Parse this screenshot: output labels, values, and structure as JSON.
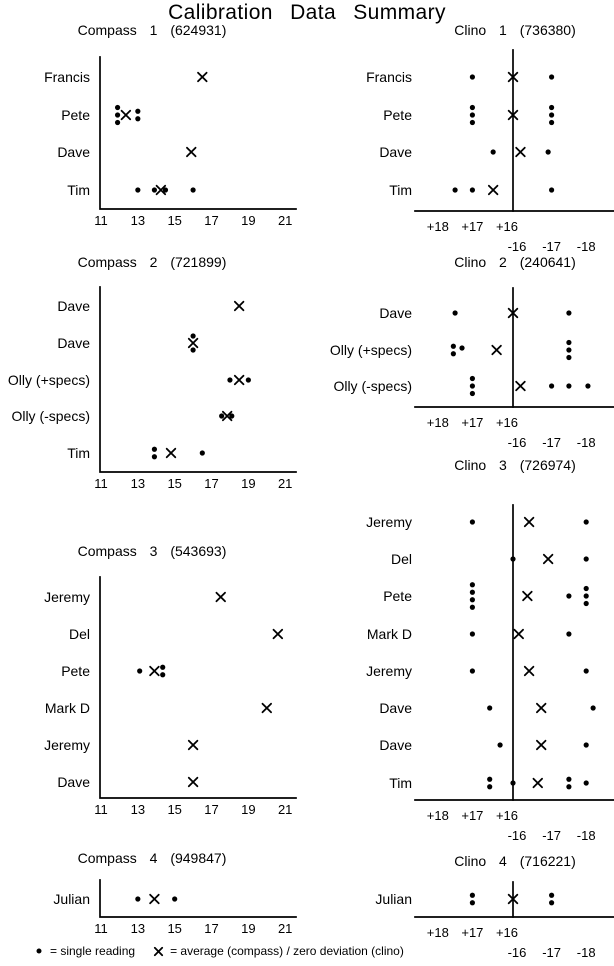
{
  "page_title": "Calibration Data Summary",
  "legend": {
    "dot_label": "= single reading",
    "avg_label": "= average (compass) / zero deviation (clino)"
  },
  "chart_data": [
    {
      "id": "compass-1",
      "type": "scatter",
      "kind": "compass",
      "title": "Compass 1 (624931)",
      "xlabel": "",
      "ylabel": "",
      "xlim": [
        11,
        21
      ],
      "x_ticks": [
        11,
        13,
        15,
        17,
        19,
        21
      ],
      "marker_legend": {
        "dot": "single reading",
        "cross": "average"
      },
      "rows": [
        {
          "label": "Francis",
          "points": [
            {
              "v": 16.5,
              "t": "avg"
            }
          ]
        },
        {
          "label": "Pete",
          "points": [
            {
              "v": 11.9,
              "t": "dot",
              "n": 3
            },
            {
              "v": 12.35,
              "t": "avg"
            },
            {
              "v": 13.0,
              "t": "dot",
              "n": 2
            }
          ]
        },
        {
          "label": "Dave",
          "points": [
            {
              "v": 15.9,
              "t": "avg"
            }
          ]
        },
        {
          "label": "Tim",
          "points": [
            {
              "v": 13.0,
              "t": "dot"
            },
            {
              "v": 13.9,
              "t": "dot"
            },
            {
              "v": 14.25,
              "t": "avg"
            },
            {
              "v": 14.5,
              "t": "dot"
            },
            {
              "v": 16.0,
              "t": "dot"
            }
          ]
        }
      ]
    },
    {
      "id": "clino-1",
      "type": "scatter",
      "kind": "clino",
      "title": "Clino 1 (736380)",
      "plus_ticks": [
        "+18",
        "+17",
        "+16"
      ],
      "minus_ticks": [
        "-16",
        "-17",
        "-18"
      ],
      "marker_legend": {
        "dot": "single reading",
        "cross": "zero deviation"
      },
      "rows": [
        {
          "label": "Francis",
          "points": [
            {
              "v": 17,
              "t": "dot"
            },
            {
              "v": 0,
              "t": "avg"
            },
            {
              "v": -17,
              "t": "dot"
            }
          ]
        },
        {
          "label": "Pete",
          "points": [
            {
              "v": 17,
              "t": "dot",
              "n": 3
            },
            {
              "v": 0,
              "t": "avg"
            },
            {
              "v": -17,
              "t": "dot",
              "n": 3
            }
          ]
        },
        {
          "label": "Dave",
          "points": [
            {
              "v": 16.4,
              "t": "dot"
            },
            {
              "v": -16.1,
              "t": "avg"
            },
            {
              "v": -16.9,
              "t": "dot"
            }
          ]
        },
        {
          "label": "Tim",
          "points": [
            {
              "v": 17.5,
              "t": "dot"
            },
            {
              "v": 17,
              "t": "dot"
            },
            {
              "v": 16.4,
              "t": "avg"
            },
            {
              "v": -17,
              "t": "dot"
            }
          ]
        }
      ]
    },
    {
      "id": "compass-2",
      "type": "scatter",
      "kind": "compass",
      "title": "Compass 2 (721899)",
      "xlabel": "",
      "ylabel": "",
      "xlim": [
        11,
        21
      ],
      "x_ticks": [
        11,
        13,
        15,
        17,
        19,
        21
      ],
      "rows": [
        {
          "label": "Dave",
          "points": [
            {
              "v": 18.5,
              "t": "avg"
            }
          ]
        },
        {
          "label": "Dave",
          "points": [
            {
              "v": 16.0,
              "t": "dot",
              "dy": -7
            },
            {
              "v": 16.0,
              "t": "avg"
            },
            {
              "v": 16.0,
              "t": "dot",
              "dy": 7
            }
          ]
        },
        {
          "label": "Olly (+specs)",
          "points": [
            {
              "v": 18.0,
              "t": "dot"
            },
            {
              "v": 18.5,
              "t": "avg"
            },
            {
              "v": 19.0,
              "t": "dot"
            }
          ]
        },
        {
          "label": "Olly (-specs)",
          "points": [
            {
              "v": 17.55,
              "t": "dot"
            },
            {
              "v": 17.85,
              "t": "avg"
            },
            {
              "v": 18.1,
              "t": "dot"
            }
          ]
        },
        {
          "label": "Tim",
          "points": [
            {
              "v": 13.9,
              "t": "dot",
              "n": 2
            },
            {
              "v": 14.8,
              "t": "avg"
            },
            {
              "v": 16.5,
              "t": "dot"
            }
          ]
        }
      ]
    },
    {
      "id": "clino-2",
      "type": "scatter",
      "kind": "clino",
      "title": "Clino 2 (240641)",
      "plus_ticks": [
        "+18",
        "+17",
        "+16"
      ],
      "minus_ticks": [
        "-16",
        "-17",
        "-18"
      ],
      "rows": [
        {
          "label": "Dave",
          "points": [
            {
              "v": 17.5,
              "t": "dot"
            },
            {
              "v": 0,
              "t": "avg"
            },
            {
              "v": -17.5,
              "t": "dot"
            }
          ]
        },
        {
          "label": "Olly (+specs)",
          "points": [
            {
              "v": 17.55,
              "t": "dot",
              "n": 2
            },
            {
              "v": 17.3,
              "t": "dot",
              "dy": -2
            },
            {
              "v": 16.3,
              "t": "avg"
            },
            {
              "v": -17.5,
              "t": "dot",
              "n": 3
            }
          ]
        },
        {
          "label": "Olly (-specs)",
          "points": [
            {
              "v": 17.0,
              "t": "dot",
              "n": 3
            },
            {
              "v": -16.1,
              "t": "avg"
            },
            {
              "v": -17.0,
              "t": "dot"
            },
            {
              "v": -17.5,
              "t": "dot"
            },
            {
              "v": -18.05,
              "t": "dot"
            }
          ]
        }
      ]
    },
    {
      "id": "compass-3",
      "type": "scatter",
      "kind": "compass",
      "title": "Compass 3 (543693)",
      "xlabel": "",
      "ylabel": "",
      "xlim": [
        11,
        21
      ],
      "x_ticks": [
        11,
        13,
        15,
        17,
        19,
        21
      ],
      "rows": [
        {
          "label": "Jeremy",
          "points": [
            {
              "v": 17.5,
              "t": "avg"
            }
          ]
        },
        {
          "label": "Del",
          "points": [
            {
              "v": 20.6,
              "t": "avg"
            }
          ]
        },
        {
          "label": "Pete",
          "points": [
            {
              "v": 13.1,
              "t": "dot"
            },
            {
              "v": 13.9,
              "t": "avg"
            },
            {
              "v": 14.35,
              "t": "dot",
              "n": 2
            }
          ]
        },
        {
          "label": "Mark D",
          "points": [
            {
              "v": 20.0,
              "t": "avg"
            }
          ]
        },
        {
          "label": "Jeremy",
          "points": [
            {
              "v": 16.0,
              "t": "avg"
            }
          ]
        },
        {
          "label": "Dave",
          "points": [
            {
              "v": 16.0,
              "t": "avg"
            }
          ]
        }
      ]
    },
    {
      "id": "clino-3",
      "type": "scatter",
      "kind": "clino",
      "title": "Clino 3 (726974)",
      "plus_ticks": [
        "+18",
        "+17",
        "+16"
      ],
      "minus_ticks": [
        "-16",
        "-17",
        "-18"
      ],
      "rows": [
        {
          "label": "Jeremy",
          "points": [
            {
              "v": 17,
              "t": "dot"
            },
            {
              "v": -16.35,
              "t": "avg"
            },
            {
              "v": -18,
              "t": "dot"
            }
          ]
        },
        {
          "label": "Del",
          "points": [
            {
              "v": 0,
              "t": "dot"
            },
            {
              "v": -16.9,
              "t": "avg"
            },
            {
              "v": -18,
              "t": "dot"
            }
          ]
        },
        {
          "label": "Pete",
          "points": [
            {
              "v": 17,
              "t": "dot",
              "n": 4
            },
            {
              "v": -16.3,
              "t": "avg"
            },
            {
              "v": -17.5,
              "t": "dot"
            },
            {
              "v": -18,
              "t": "dot",
              "n": 3
            }
          ]
        },
        {
          "label": "Mark D",
          "points": [
            {
              "v": 17,
              "t": "dot"
            },
            {
              "v": -16.05,
              "t": "avg"
            },
            {
              "v": -17.5,
              "t": "dot"
            }
          ]
        },
        {
          "label": "Jeremy",
          "points": [
            {
              "v": 17,
              "t": "dot"
            },
            {
              "v": -16.35,
              "t": "avg"
            },
            {
              "v": -18,
              "t": "dot"
            }
          ]
        },
        {
          "label": "Dave",
          "points": [
            {
              "v": 16.5,
              "t": "dot"
            },
            {
              "v": -16.7,
              "t": "avg"
            },
            {
              "v": -18.2,
              "t": "dot"
            }
          ]
        },
        {
          "label": "Dave",
          "points": [
            {
              "v": 16.2,
              "t": "dot"
            },
            {
              "v": -16.7,
              "t": "avg"
            },
            {
              "v": -18,
              "t": "dot"
            }
          ]
        },
        {
          "label": "Tim",
          "points": [
            {
              "v": 16.5,
              "t": "dot",
              "n": 2
            },
            {
              "v": 0,
              "t": "dot"
            },
            {
              "v": -16.6,
              "t": "avg"
            },
            {
              "v": -17.5,
              "t": "dot",
              "n": 2
            },
            {
              "v": -18,
              "t": "dot"
            }
          ]
        }
      ]
    },
    {
      "id": "compass-4",
      "type": "scatter",
      "kind": "compass",
      "title": "Compass 4 (949847)",
      "xlabel": "",
      "ylabel": "",
      "xlim": [
        11,
        21
      ],
      "x_ticks": [
        11,
        13,
        15,
        17,
        19,
        21
      ],
      "rows": [
        {
          "label": "Julian",
          "points": [
            {
              "v": 13.0,
              "t": "dot"
            },
            {
              "v": 13.9,
              "t": "avg"
            },
            {
              "v": 15.0,
              "t": "dot"
            }
          ]
        }
      ]
    },
    {
      "id": "clino-4",
      "type": "scatter",
      "kind": "clino",
      "title": "Clino 4 (716221)",
      "plus_ticks": [
        "+18",
        "+17",
        "+16"
      ],
      "minus_ticks": [
        "-16",
        "-17",
        "-18"
      ],
      "rows": [
        {
          "label": "Julian",
          "points": [
            {
              "v": 17,
              "t": "dot",
              "n": 2
            },
            {
              "v": 0,
              "t": "avg"
            },
            {
              "v": -17,
              "t": "dot",
              "n": 2
            }
          ]
        }
      ]
    }
  ]
}
